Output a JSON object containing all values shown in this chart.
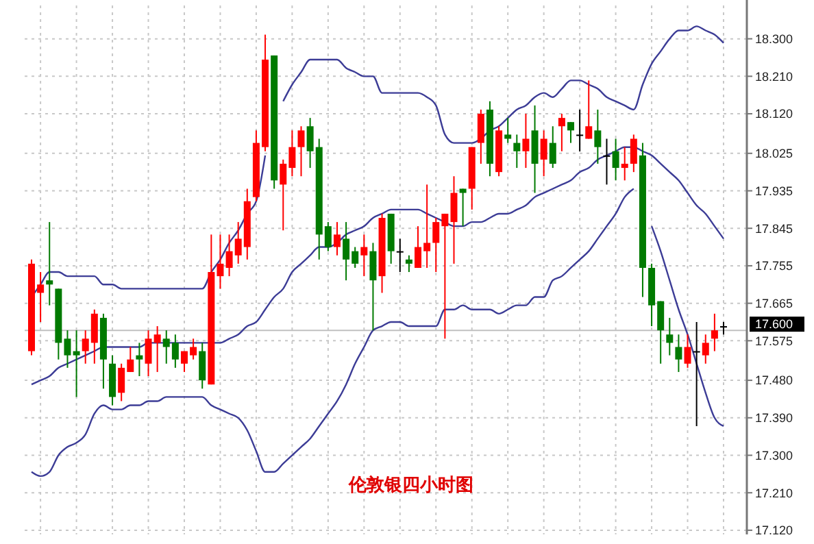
{
  "chart_data": {
    "type": "candlestick",
    "title": "伦敦银四小时图",
    "categories": [
      null,
      null,
      null,
      null,
      null,
      null,
      null,
      null,
      null,
      null,
      null,
      null,
      null,
      null,
      null,
      null,
      null,
      null,
      null,
      null,
      null,
      null,
      null,
      null,
      null,
      null,
      null,
      null,
      null,
      null,
      null,
      null,
      null,
      null,
      null,
      null,
      null,
      null,
      null,
      null,
      null,
      null,
      null,
      null,
      null,
      null,
      null,
      null,
      null,
      null,
      null,
      null,
      null,
      null,
      null,
      null,
      null,
      null,
      null,
      null,
      null,
      null,
      null,
      null,
      null,
      null,
      null,
      null,
      null,
      null,
      null,
      null,
      null,
      null,
      null,
      null,
      null,
      null
    ],
    "ohlc": [
      [
        17.55,
        17.77,
        17.54,
        17.76
      ],
      [
        17.69,
        17.74,
        17.62,
        17.71
      ],
      [
        17.72,
        17.86,
        17.66,
        17.71
      ],
      [
        17.7,
        17.7,
        17.53,
        17.57
      ],
      [
        17.58,
        17.6,
        17.51,
        17.54
      ],
      [
        17.55,
        17.6,
        17.44,
        17.54
      ],
      [
        17.55,
        17.6,
        17.52,
        17.58
      ],
      [
        17.57,
        17.65,
        17.52,
        17.64
      ],
      [
        17.63,
        17.64,
        17.46,
        17.53
      ],
      [
        17.52,
        17.54,
        17.42,
        17.44
      ],
      [
        17.45,
        17.52,
        17.43,
        17.51
      ],
      [
        17.5,
        17.56,
        17.5,
        17.53
      ],
      [
        17.54,
        17.57,
        17.49,
        17.53
      ],
      [
        17.52,
        17.6,
        17.49,
        17.58
      ],
      [
        17.57,
        17.61,
        17.5,
        17.59
      ],
      [
        17.58,
        17.6,
        17.52,
        17.56
      ],
      [
        17.57,
        17.59,
        17.51,
        17.53
      ],
      [
        17.52,
        17.55,
        17.5,
        17.55
      ],
      [
        17.54,
        17.58,
        17.53,
        17.56
      ],
      [
        17.55,
        17.57,
        17.46,
        17.48
      ],
      [
        17.47,
        17.83,
        17.47,
        17.74
      ],
      [
        17.73,
        17.83,
        17.7,
        17.76
      ],
      [
        17.75,
        17.83,
        17.73,
        17.79
      ],
      [
        17.78,
        17.86,
        17.76,
        17.82
      ],
      [
        17.8,
        17.94,
        17.77,
        17.91
      ],
      [
        17.92,
        18.08,
        17.91,
        18.05
      ],
      [
        18.04,
        18.31,
        18.03,
        18.25
      ],
      [
        18.26,
        18.26,
        17.94,
        17.96
      ],
      [
        17.95,
        18.01,
        17.84,
        18.0
      ],
      [
        17.99,
        18.08,
        17.97,
        18.04
      ],
      [
        18.04,
        18.09,
        17.97,
        18.08
      ],
      [
        18.09,
        18.11,
        17.99,
        18.03
      ],
      [
        18.04,
        18.06,
        17.77,
        17.83
      ],
      [
        17.85,
        17.86,
        17.79,
        17.8
      ],
      [
        17.8,
        17.86,
        17.78,
        17.83
      ],
      [
        17.82,
        17.86,
        17.72,
        17.77
      ],
      [
        17.79,
        17.8,
        17.75,
        17.76
      ],
      [
        17.78,
        17.83,
        17.73,
        17.8
      ],
      [
        17.79,
        17.81,
        17.6,
        17.72
      ],
      [
        17.73,
        17.88,
        17.69,
        17.87
      ],
      [
        17.88,
        17.88,
        17.76,
        17.79
      ],
      [
        17.79,
        17.82,
        17.74,
        17.79
      ],
      [
        17.77,
        17.78,
        17.74,
        17.76
      ],
      [
        17.75,
        17.85,
        17.75,
        17.8
      ],
      [
        17.79,
        17.95,
        17.75,
        17.81
      ],
      [
        17.81,
        17.87,
        17.74,
        17.86
      ],
      [
        17.85,
        17.88,
        17.58,
        17.88
      ],
      [
        17.86,
        17.97,
        17.76,
        17.93
      ],
      [
        17.94,
        17.94,
        17.85,
        17.93
      ],
      [
        17.94,
        18.04,
        17.89,
        18.04
      ],
      [
        18.05,
        18.13,
        18.0,
        18.12
      ],
      [
        18.13,
        18.15,
        17.97,
        18.0
      ],
      [
        17.98,
        18.09,
        17.97,
        18.08
      ],
      [
        18.07,
        18.11,
        18.05,
        18.06
      ],
      [
        18.05,
        18.07,
        17.99,
        18.03
      ],
      [
        18.03,
        18.12,
        17.99,
        18.06
      ],
      [
        18.08,
        18.14,
        17.93,
        18.0
      ],
      [
        18.01,
        18.08,
        17.97,
        18.06
      ],
      [
        18.05,
        18.09,
        17.99,
        18.0
      ],
      [
        18.09,
        18.12,
        18.03,
        18.11
      ],
      [
        18.1,
        18.1,
        18.05,
        18.08
      ],
      [
        18.07,
        18.13,
        18.03,
        18.07
      ],
      [
        18.06,
        18.2,
        18.06,
        18.09
      ],
      [
        18.08,
        18.13,
        18.0,
        18.04
      ],
      [
        18.02,
        18.06,
        17.95,
        18.02
      ],
      [
        18.03,
        18.06,
        17.96,
        17.99
      ],
      [
        17.99,
        18.04,
        17.96,
        18.0
      ],
      [
        18.0,
        18.07,
        17.98,
        18.06
      ],
      [
        18.02,
        18.05,
        17.68,
        17.75
      ],
      [
        17.75,
        17.76,
        17.61,
        17.66
      ],
      [
        17.67,
        17.67,
        17.52,
        17.6
      ],
      [
        17.59,
        17.63,
        17.54,
        17.57
      ],
      [
        17.56,
        17.59,
        17.5,
        17.53
      ],
      [
        17.52,
        17.59,
        17.51,
        17.56
      ],
      [
        17.55,
        17.62,
        17.37,
        17.55
      ],
      [
        17.54,
        17.59,
        17.52,
        17.57
      ],
      [
        17.58,
        17.64,
        17.55,
        17.6
      ],
      [
        17.61,
        17.62,
        17.59,
        17.61
      ]
    ],
    "colors": [
      "#ff0000",
      "#ff0000",
      "#007a00",
      "#007a00",
      "#007a00",
      "#007a00",
      "#ff0000",
      "#ff0000",
      "#007a00",
      "#007a00",
      "#ff0000",
      "#ff0000",
      "#007a00",
      "#ff0000",
      "#ff0000",
      "#007a00",
      "#007a00",
      "#ff0000",
      "#ff0000",
      "#007a00",
      "#ff0000",
      "#ff0000",
      "#ff0000",
      "#ff0000",
      "#ff0000",
      "#ff0000",
      "#ff0000",
      "#007a00",
      "#ff0000",
      "#ff0000",
      "#ff0000",
      "#007a00",
      "#007a00",
      "#007a00",
      "#ff0000",
      "#007a00",
      "#007a00",
      "#ff0000",
      "#007a00",
      "#ff0000",
      "#007a00",
      "#000000",
      "#007a00",
      "#ff0000",
      "#ff0000",
      "#ff0000",
      "#ff0000",
      "#ff0000",
      "#007a00",
      "#ff0000",
      "#ff0000",
      "#007a00",
      "#ff0000",
      "#007a00",
      "#007a00",
      "#ff0000",
      "#007a00",
      "#ff0000",
      "#007a00",
      "#ff0000",
      "#007a00",
      "#000000",
      "#ff0000",
      "#007a00",
      "#000000",
      "#007a00",
      "#ff0000",
      "#ff0000",
      "#007a00",
      "#007a00",
      "#007a00",
      "#007a00",
      "#007a00",
      "#ff0000",
      "#000000",
      "#ff0000",
      "#ff0000",
      "#000000"
    ],
    "series": [
      {
        "type": "line",
        "color": "#3c3c96",
        "values": [
          17.68,
          17.71,
          17.74,
          17.74,
          17.73,
          17.73,
          17.73,
          17.73,
          17.71,
          17.71,
          17.7,
          17.7,
          17.7,
          17.7,
          17.7,
          17.7,
          17.7,
          17.7,
          17.7,
          17.7,
          17.74,
          17.77,
          17.81,
          17.84,
          17.88,
          17.91,
          18.02,
          null,
          18.15,
          18.19,
          18.22,
          18.25,
          18.25,
          18.25,
          18.25,
          18.23,
          18.22,
          18.21,
          18.21,
          18.17,
          18.17,
          18.17,
          18.17,
          18.17,
          18.16,
          18.14,
          18.07,
          18.05,
          18.05,
          18.05,
          18.06,
          18.08,
          18.09,
          18.11,
          18.13,
          18.14,
          18.16,
          18.17,
          18.16,
          18.18,
          18.2,
          18.2,
          18.19,
          18.18,
          18.16,
          18.15,
          18.14,
          18.13,
          18.19,
          18.24,
          18.27,
          18.3,
          18.32,
          18.32,
          18.33,
          18.32,
          18.31,
          18.29
        ]
      },
      {
        "type": "line",
        "color": "#3c3c96",
        "values": [
          17.47,
          17.48,
          17.49,
          17.51,
          17.52,
          17.53,
          17.54,
          17.55,
          17.56,
          17.56,
          17.56,
          17.56,
          17.56,
          17.57,
          17.57,
          17.57,
          17.57,
          17.57,
          17.57,
          17.57,
          17.57,
          17.57,
          17.58,
          17.59,
          17.61,
          17.62,
          17.65,
          17.68,
          17.7,
          17.74,
          17.76,
          17.78,
          17.8,
          17.8,
          17.81,
          17.83,
          17.84,
          17.85,
          17.87,
          17.88,
          17.89,
          17.89,
          17.89,
          17.89,
          17.88,
          17.87,
          17.86,
          17.85,
          17.85,
          17.86,
          17.86,
          17.87,
          17.88,
          17.88,
          17.89,
          17.9,
          17.92,
          17.93,
          17.94,
          17.95,
          17.96,
          17.98,
          17.99,
          18.01,
          18.02,
          18.03,
          18.04,
          18.04,
          18.03,
          18.02,
          18.0,
          17.98,
          17.96,
          17.93,
          17.9,
          17.88,
          17.85,
          17.82
        ]
      },
      {
        "type": "line",
        "color": "#3c3c96",
        "values": [
          17.26,
          17.25,
          17.26,
          17.3,
          17.32,
          17.33,
          17.35,
          17.4,
          17.42,
          17.41,
          17.41,
          17.42,
          17.42,
          17.43,
          17.43,
          17.44,
          17.44,
          17.44,
          17.44,
          17.44,
          17.42,
          17.41,
          17.4,
          17.39,
          17.36,
          17.31,
          17.26,
          17.26,
          17.28,
          17.3,
          17.32,
          17.34,
          17.37,
          17.4,
          17.43,
          17.47,
          17.52,
          17.56,
          17.6,
          17.61,
          17.62,
          17.62,
          17.61,
          17.61,
          17.61,
          17.61,
          17.65,
          17.65,
          17.66,
          17.65,
          17.65,
          17.65,
          17.64,
          17.65,
          17.66,
          17.66,
          17.68,
          17.68,
          17.72,
          17.73,
          17.75,
          17.77,
          17.79,
          17.82,
          17.85,
          17.88,
          17.92,
          17.94,
          null,
          17.85,
          17.79,
          17.72,
          17.65,
          17.59,
          17.52,
          17.45,
          17.39,
          17.37
        ]
      }
    ],
    "ylim": [
      17.11,
      18.38
    ],
    "yticks": [
      {
        "value": 18.3,
        "label": "18.300"
      },
      {
        "value": 18.21,
        "label": "18.210"
      },
      {
        "value": 18.12,
        "label": "18.120"
      },
      18.025,
      17.935,
      17.845,
      17.755,
      17.665,
      17.575,
      {
        "value": 17.48,
        "label": "17.480"
      },
      {
        "value": 17.39,
        "label": "17.390"
      },
      {
        "value": 17.3,
        "label": "17.300"
      },
      {
        "value": 17.21,
        "label": "17.210"
      },
      {
        "value": 17.12,
        "label": "17.120"
      }
    ],
    "ref_lines": [
      {
        "axis": "y",
        "value": 17.6,
        "label": "17.600",
        "color": "#c0c0c0"
      }
    ],
    "grid": true,
    "tick_labels": "y"
  }
}
